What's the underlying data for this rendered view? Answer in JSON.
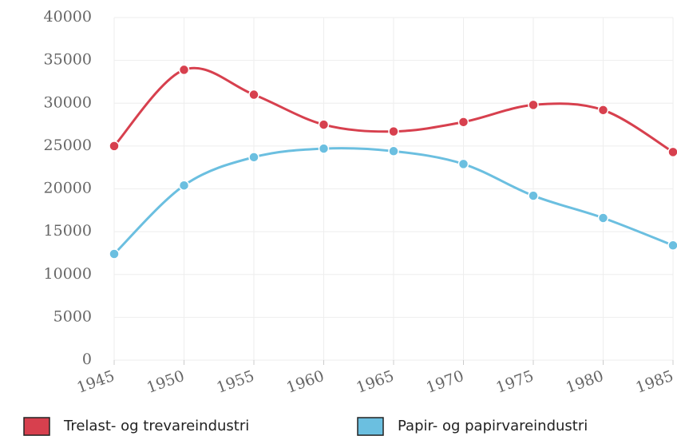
{
  "chart_data": {
    "type": "line",
    "x": [
      1945,
      1950,
      1955,
      1960,
      1965,
      1970,
      1975,
      1980,
      1985
    ],
    "series": [
      {
        "name": "Trelast- og trevareindustri",
        "color": "#d7404e",
        "values": [
          25000,
          33900,
          31000,
          27500,
          26700,
          27800,
          29800,
          29200,
          24300
        ]
      },
      {
        "name": "Papir- og papirvareindustri",
        "color": "#6bbfe0",
        "values": [
          12400,
          20400,
          23700,
          24700,
          24400,
          22900,
          19200,
          16600,
          13400
        ]
      }
    ],
    "xlim": [
      1945,
      1985
    ],
    "xticks": [
      1945,
      1950,
      1955,
      1960,
      1965,
      1970,
      1975,
      1980,
      1985
    ],
    "ylim": [
      0,
      40000
    ],
    "yticks": [
      0,
      5000,
      10000,
      15000,
      20000,
      25000,
      30000,
      35000,
      40000
    ],
    "grid": true,
    "legend": "bottom"
  }
}
